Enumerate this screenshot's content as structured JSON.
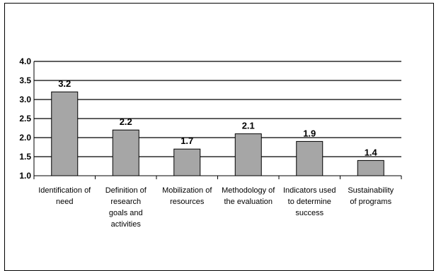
{
  "chart_data": {
    "type": "bar",
    "categories": [
      "Identification of need",
      "Definition of research goals and activities",
      "Mobilization of resources",
      "Methodology of the evaluation",
      "Indicators used to determine success",
      "Sustainability of programs"
    ],
    "category_lines": [
      [
        "Identification of",
        "need"
      ],
      [
        "Definition of",
        "research",
        "goals and",
        "activities"
      ],
      [
        "Mobilization of",
        "resources"
      ],
      [
        "Methodology of",
        "the evaluation"
      ],
      [
        "Indicators used",
        "to determine",
        "success"
      ],
      [
        "Sustainability",
        "of programs"
      ]
    ],
    "values": [
      3.2,
      2.2,
      1.7,
      2.1,
      1.9,
      1.4
    ],
    "value_labels": [
      "3.2",
      "2.2",
      "1.7",
      "2.1",
      "1.9",
      "1.4"
    ],
    "y_ticks": [
      "1.0",
      "1.5",
      "2.0",
      "2.5",
      "3.0",
      "3.5",
      "4.0"
    ],
    "ylim": [
      1.0,
      4.0
    ],
    "grid": true,
    "colors": {
      "bar_fill": "#a6a6a6",
      "bar_stroke": "#000000",
      "grid": "#000000"
    },
    "title": "",
    "xlabel": "",
    "ylabel": ""
  }
}
